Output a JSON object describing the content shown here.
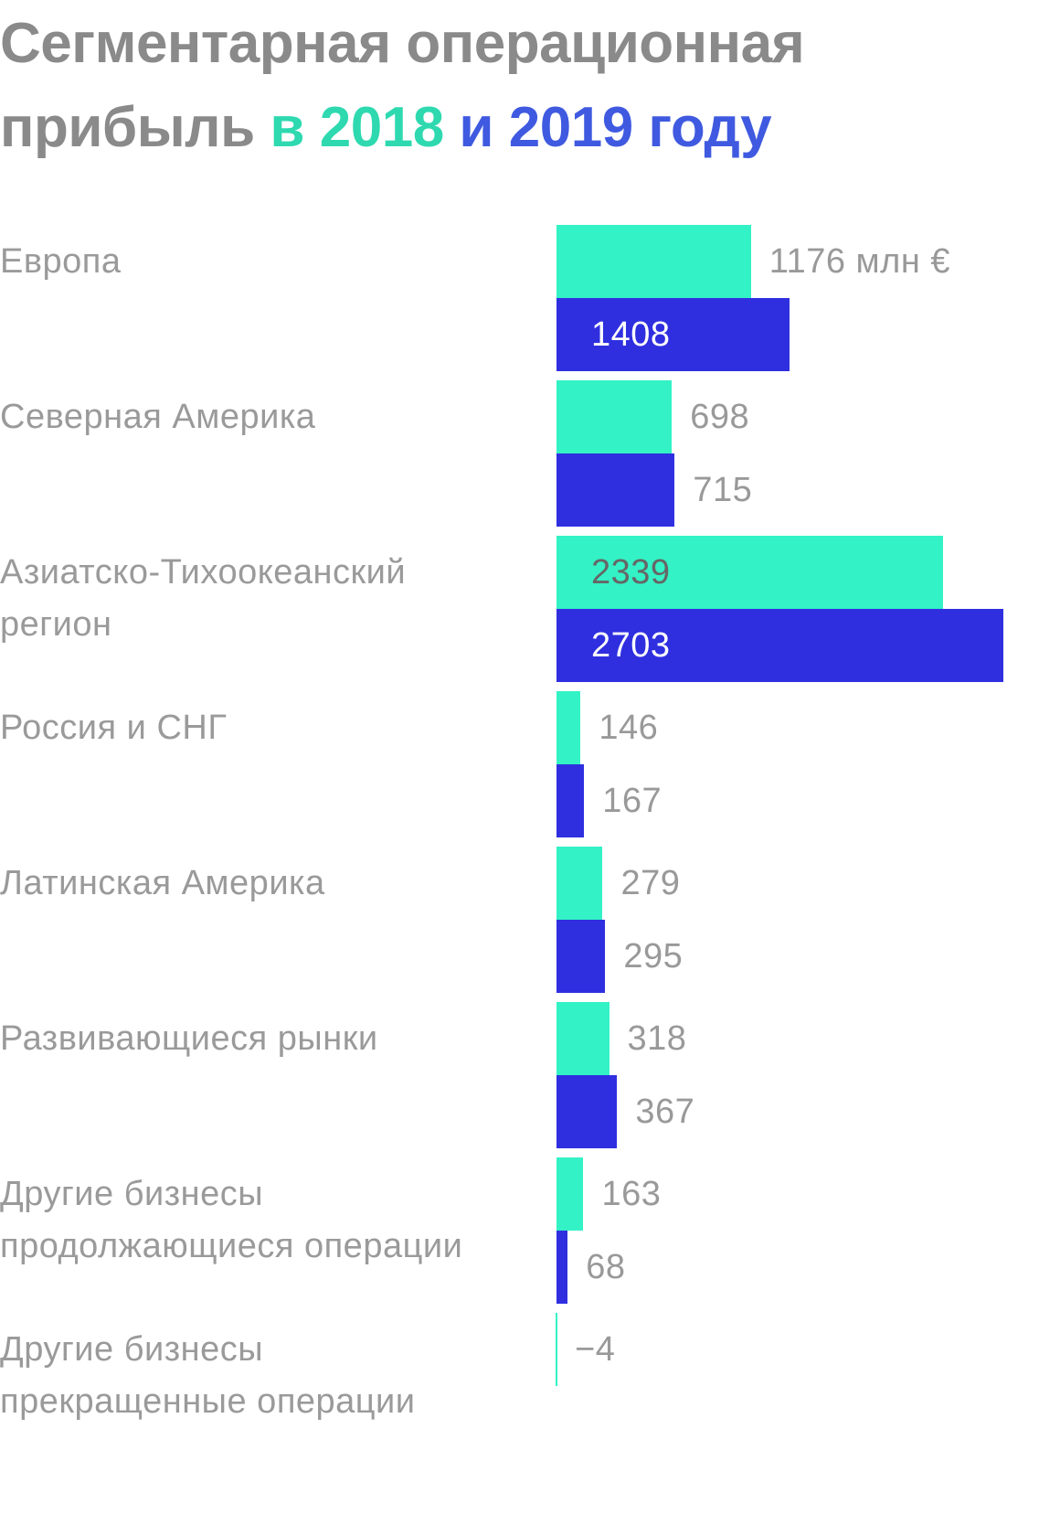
{
  "chart_data": {
    "type": "bar",
    "orientation": "horizontal",
    "title": "Сегментарная операционная прибыль",
    "categories": [
      "Европа",
      "Северная Америка",
      "Азиатско-Тихоокеанский\nрегион",
      "Россия и СНГ",
      "Латинская Америка",
      "Развивающиеся рынки",
      "Другие бизнесы\nпродолжающиеся операции",
      "Другие бизнесы\nпрекращенные операции"
    ],
    "series": [
      {
        "name": "в 2018",
        "color": "#33f2c5",
        "title_color": "#2ed9b0",
        "values": [
          1176,
          698,
          2339,
          146,
          279,
          318,
          163,
          -4
        ],
        "value_labels": [
          "1176 млн €",
          "698",
          "2339",
          "146",
          "279",
          "318",
          "163",
          "−4"
        ]
      },
      {
        "name": "и 2019 году",
        "color": "#2f2fe0",
        "title_color": "#3f5ae0",
        "values": [
          1408,
          715,
          2703,
          167,
          295,
          367,
          68,
          null
        ],
        "value_labels": [
          "1408",
          "715",
          "2703",
          "167",
          "295",
          "367",
          "68",
          null
        ]
      }
    ]
  }
}
